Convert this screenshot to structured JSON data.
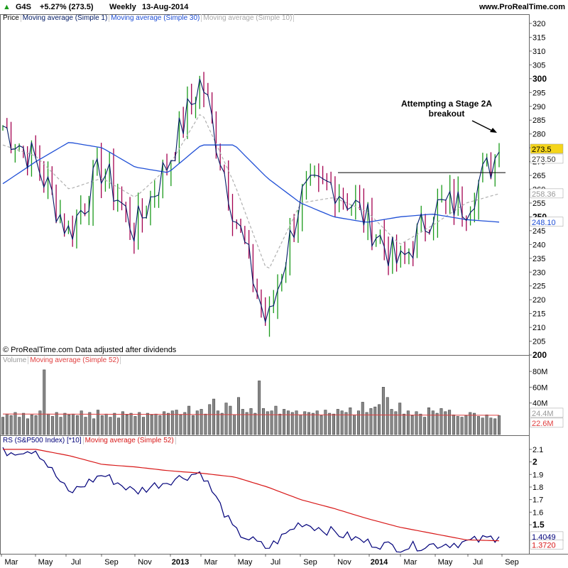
{
  "header": {
    "symbol": "G4S",
    "change": "+5.27% (273.5)",
    "period": "Weekly",
    "date": "13-Aug-2014",
    "site": "www.ProRealTime.com"
  },
  "price_panel": {
    "legend": [
      "Price",
      "Moving average (Simple 1)",
      "Moving average (Simple 30)",
      "Moving average (Simple 10)"
    ],
    "footer": "© ProRealTime.com  Data adjusted after dividends",
    "annotation_line1": "Attempting a Stage 2A",
    "annotation_line2": "breakout",
    "ticks": [
      "320",
      "315",
      "310",
      "305",
      "300",
      "295",
      "290",
      "285",
      "280",
      "275",
      "270",
      "265",
      "260",
      "255",
      "250",
      "245",
      "240",
      "235",
      "230",
      "225",
      "220",
      "215",
      "210",
      "205",
      "200"
    ],
    "bold_ticks": [
      "300",
      "250",
      "200"
    ],
    "last_price_label": "273.5",
    "ma10_label": "273.50",
    "ma30_label_a": "258.36",
    "ma30_label_b": "248.10",
    "resistance": 266
  },
  "volume_panel": {
    "legend": [
      "Volume",
      "Moving average (Simple 52)"
    ],
    "ticks": [
      "80M",
      "60M",
      "40M"
    ],
    "ma_label": "24.4M",
    "ma_label2": "22.6M"
  },
  "rs_panel": {
    "legend": [
      "RS (S&P500 Index) [*10]",
      "Moving average (Simple 52)"
    ],
    "ticks": [
      "2.1",
      "2",
      "1.9",
      "1.8",
      "1.7",
      "1.6",
      "1.5"
    ],
    "bold_ticks": [
      "2",
      "1.5"
    ],
    "value_label": "1.4049",
    "ma_label": "1.3720"
  },
  "x_axis": {
    "labels": [
      "Mar",
      "May",
      "Jul",
      "Sep",
      "Nov",
      "2013",
      "Mar",
      "May",
      "Jul",
      "Sep",
      "Nov",
      "2014",
      "Mar",
      "May",
      "Jul",
      "Sep"
    ],
    "bold_labels": [
      "2013",
      "2014"
    ]
  },
  "colors": {
    "up": "#1a9a1a",
    "down": "#a3004f",
    "ma1": "#001a66",
    "ma30": "#1f4fd6",
    "ma10": "#b0b0b0",
    "volume": "#888888",
    "volume_ma": "#e04040",
    "rs": "#00007a",
    "rs_ma": "#d81818",
    "label_highlight": "#f5d51a"
  },
  "chart_data": [
    {
      "type": "line",
      "title": "G4S Weekly",
      "x": [
        "2012-03",
        "2012-05",
        "2012-07",
        "2012-09",
        "2012-11",
        "2013-01",
        "2013-03",
        "2013-05",
        "2013-07",
        "2013-09",
        "2013-11",
        "2014-01",
        "2014-03",
        "2014-05",
        "2014-07",
        "2014-08"
      ],
      "series": [
        {
          "name": "Moving average (Simple 1)",
          "values": [
            283,
            270,
            244,
            268,
            245,
            270,
            300,
            252,
            210,
            257,
            262,
            249,
            232,
            253,
            255,
            273.5
          ]
        },
        {
          "name": "Moving average (Simple 30)",
          "values": [
            262,
            270,
            277,
            275,
            268,
            266,
            276,
            276,
            264,
            255,
            250,
            248,
            250,
            251,
            249,
            248.1
          ]
        },
        {
          "name": "Moving average (Simple 10)",
          "values": [
            276,
            272,
            260,
            264,
            257,
            268,
            288,
            262,
            230,
            255,
            257,
            252,
            240,
            247,
            255,
            258.36
          ]
        }
      ],
      "ylim": [
        200,
        320
      ]
    },
    {
      "type": "bar",
      "title": "Volume",
      "series": [
        {
          "name": "Volume",
          "values_million": [
            22,
            26,
            24,
            28,
            22,
            27,
            20,
            25,
            24,
            30,
            82,
            26,
            23,
            28,
            22,
            27,
            25,
            26,
            24,
            30,
            22,
            28,
            20,
            31,
            24,
            26,
            22,
            27,
            21,
            29,
            25,
            27,
            23,
            28,
            22,
            27,
            25,
            26,
            24,
            29,
            27,
            30,
            31,
            25,
            28,
            36,
            24,
            30,
            32,
            26,
            38,
            45,
            30,
            27,
            40,
            36,
            25,
            47,
            32,
            28,
            33,
            27,
            68,
            33,
            29,
            30,
            36,
            26,
            32,
            30,
            28,
            30,
            25,
            29,
            28,
            27,
            30,
            24,
            31,
            27,
            26,
            32,
            30,
            28,
            34,
            25,
            30,
            41,
            28,
            33,
            35,
            38,
            60,
            47,
            32,
            29,
            40,
            26,
            30,
            24,
            29,
            26,
            22,
            34,
            30,
            27,
            33,
            29,
            31,
            25,
            23,
            22,
            24,
            28,
            27,
            23,
            21,
            25,
            21,
            20,
            24
          ]
        }
      ],
      "ylim": [
        0,
        90
      ]
    },
    {
      "type": "line",
      "title": "RS (S&P500 Index) [*10]",
      "series": [
        {
          "name": "RS (S&P500 Index) [*10]",
          "values": [
            2.08,
            2.1,
            1.75,
            1.9,
            1.76,
            1.85,
            1.92,
            1.45,
            1.31,
            1.52,
            1.44,
            1.36,
            1.32,
            1.34,
            1.36,
            1.4049
          ]
        },
        {
          "name": "Moving average (Simple 52)",
          "values": [
            2.1,
            2.1,
            2.05,
            1.98,
            1.96,
            1.93,
            1.91,
            1.88,
            1.8,
            1.7,
            1.63,
            1.55,
            1.48,
            1.43,
            1.38,
            1.372
          ]
        }
      ],
      "ylim": [
        1.28,
        2.15
      ]
    }
  ]
}
